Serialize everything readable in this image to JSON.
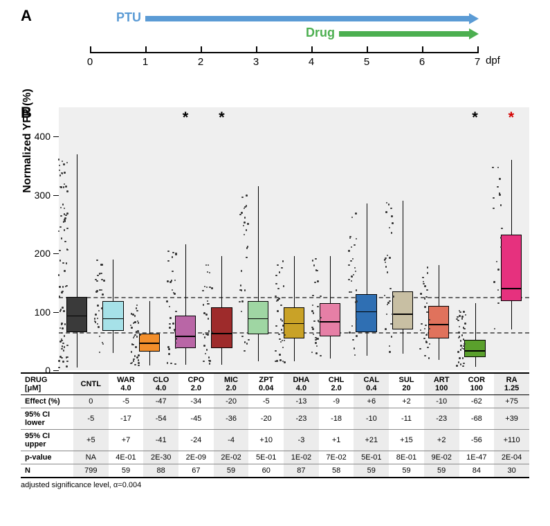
{
  "panelA": {
    "label": "A",
    "ptu": {
      "label": "PTU",
      "color": "#5b9bd5",
      "start": 1,
      "end": 7
    },
    "drug": {
      "label": "Drug",
      "color": "#4caf50",
      "start": 4.5,
      "end": 7
    },
    "axis": {
      "min": 0,
      "max": 7,
      "ticks": [
        0,
        1,
        2,
        3,
        4,
        5,
        6,
        7
      ],
      "unit": "dpf"
    }
  },
  "panelB": {
    "label": "B",
    "y_label": "Normalized YFP (%)",
    "ylim": [
      0,
      450
    ],
    "y_ticks": [
      0,
      100,
      200,
      300,
      400
    ],
    "background": "#efefef",
    "dashed_lines": [
      65,
      125
    ],
    "stars": [
      {
        "x": 3,
        "text": "*",
        "color": "#000"
      },
      {
        "x": 4,
        "text": "*",
        "color": "#000"
      },
      {
        "x": 11,
        "text": "*",
        "color": "#000"
      },
      {
        "x": 12,
        "text": "*",
        "color": "#d40000"
      }
    ],
    "groups": [
      {
        "name": "CNTL",
        "color": "#3a3a3a",
        "q1": 65,
        "median": 95,
        "q3": 125,
        "wlo": 5,
        "whi": 370,
        "n": 80,
        "spread": 4,
        "jx": 0
      },
      {
        "name": "WAR",
        "color": "#a6e1e8",
        "q1": 68,
        "median": 90,
        "q3": 118,
        "wlo": 30,
        "whi": 190,
        "n": 30,
        "spread": 3,
        "jx": 0
      },
      {
        "name": "CLO",
        "color": "#f28e2b",
        "q1": 32,
        "median": 48,
        "q3": 63,
        "wlo": 8,
        "whi": 118,
        "n": 35,
        "spread": 3,
        "jx": 0
      },
      {
        "name": "CPO",
        "color": "#b966a6",
        "q1": 38,
        "median": 60,
        "q3": 93,
        "wlo": 10,
        "whi": 215,
        "n": 32,
        "spread": 3,
        "jx": 0
      },
      {
        "name": "MIC",
        "color": "#9e2b2b",
        "q1": 38,
        "median": 65,
        "q3": 108,
        "wlo": 10,
        "whi": 195,
        "n": 30,
        "spread": 3,
        "jx": 0
      },
      {
        "name": "ZPT",
        "color": "#9fd6a3",
        "q1": 62,
        "median": 90,
        "q3": 118,
        "wlo": 15,
        "whi": 315,
        "n": 30,
        "spread": 3,
        "jx": 0
      },
      {
        "name": "DHA",
        "color": "#c9a227",
        "q1": 55,
        "median": 82,
        "q3": 108,
        "wlo": 15,
        "whi": 195,
        "n": 35,
        "spread": 3,
        "jx": 0
      },
      {
        "name": "CHL",
        "color": "#e67fa6",
        "q1": 58,
        "median": 85,
        "q3": 115,
        "wlo": 20,
        "whi": 195,
        "n": 30,
        "spread": 3,
        "jx": 0
      },
      {
        "name": "CAL",
        "color": "#2f6fb3",
        "q1": 65,
        "median": 102,
        "q3": 130,
        "wlo": 25,
        "whi": 285,
        "n": 30,
        "spread": 3,
        "jx": 0
      },
      {
        "name": "SUL",
        "color": "#c8bfa3",
        "q1": 70,
        "median": 98,
        "q3": 135,
        "wlo": 28,
        "whi": 290,
        "n": 30,
        "spread": 3,
        "jx": 0
      },
      {
        "name": "ART",
        "color": "#e0725c",
        "q1": 55,
        "median": 80,
        "q3": 110,
        "wlo": 18,
        "whi": 180,
        "n": 30,
        "spread": 3,
        "jx": 0
      },
      {
        "name": "COR",
        "color": "#5aa02c",
        "q1": 22,
        "median": 35,
        "q3": 52,
        "wlo": 6,
        "whi": 115,
        "n": 35,
        "spread": 3,
        "jx": 0
      },
      {
        "name": "RA",
        "color": "#e6317e",
        "q1": 118,
        "median": 142,
        "q3": 232,
        "wlo": 70,
        "whi": 360,
        "n": 20,
        "spread": 3,
        "jx": 0
      }
    ]
  },
  "table": {
    "header": [
      "DRUG\n[μM]",
      "CNTL",
      "WAR\n4.0",
      "CLO\n4.0",
      "CPO\n2.0",
      "MIC\n2.0",
      "ZPT\n0.04",
      "DHA\n4.0",
      "CHL\n2.0",
      "CAL\n0.4",
      "SUL\n20",
      "ART\n100",
      "COR\n100",
      "RA\n1.25"
    ],
    "rows": [
      {
        "label": "Effect (%)",
        "cells": [
          "0",
          "-5",
          "-47",
          "-34",
          "-20",
          "-5",
          "-13",
          "-9",
          "+6",
          "+2",
          "-10",
          "-62",
          "+75"
        ]
      },
      {
        "label": "95% CI lower",
        "cells": [
          "-5",
          "-17",
          "-54",
          "-45",
          "-36",
          "-20",
          "-23",
          "-18",
          "-10",
          "-11",
          "-23",
          "-68",
          "+39"
        ]
      },
      {
        "label": "95% CI upper",
        "cells": [
          "+5",
          "+7",
          "-41",
          "-24",
          "-4",
          "+10",
          "-3",
          "+1",
          "+21",
          "+15",
          "+2",
          "-56",
          "+110"
        ]
      },
      {
        "label": "p-value",
        "cells": [
          "NA",
          "4E-01",
          "2E-30",
          "2E-09",
          "2E-02",
          "5E-01",
          "1E-02",
          "7E-02",
          "5E-01",
          "8E-01",
          "9E-02",
          "1E-47",
          "2E-04"
        ]
      },
      {
        "label": "N",
        "cells": [
          "799",
          "59",
          "88",
          "67",
          "59",
          "60",
          "87",
          "58",
          "59",
          "59",
          "59",
          "84",
          "30"
        ]
      }
    ],
    "note": "adjusted significance level, α=0.004"
  }
}
